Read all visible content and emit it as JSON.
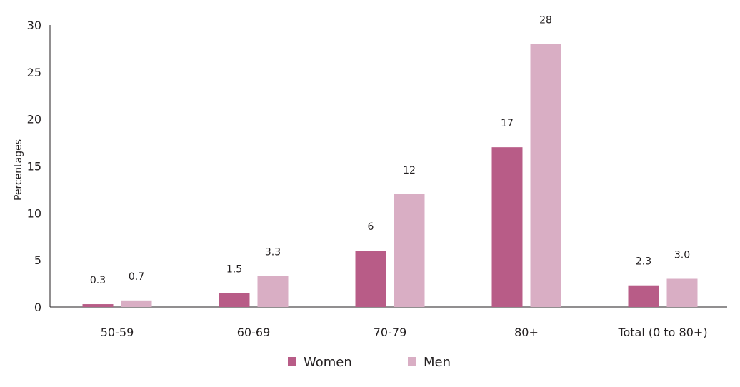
{
  "chart_data": {
    "type": "bar",
    "title": "",
    "xlabel": "",
    "ylabel": "Percentages",
    "ylim": [
      0,
      30
    ],
    "yticks": [
      0,
      5,
      10,
      15,
      20,
      25,
      30
    ],
    "categories": [
      "50-59",
      "60-69",
      "70-79",
      "80+",
      "Total  (0 to 80+)"
    ],
    "series": [
      {
        "name": "Women",
        "color": "#b85c87",
        "values": [
          0.3,
          1.5,
          6,
          17,
          2.3
        ],
        "labels": [
          "0.3",
          "1.5",
          "6",
          "17",
          "2.3"
        ]
      },
      {
        "name": "Men",
        "color": "#d9aec4",
        "values": [
          0.7,
          3.3,
          12,
          28,
          3.0
        ],
        "labels": [
          "0.7",
          "3.3",
          "12",
          "28",
          "3.0"
        ]
      }
    ],
    "grid": false,
    "legend_position": "bottom-center"
  }
}
